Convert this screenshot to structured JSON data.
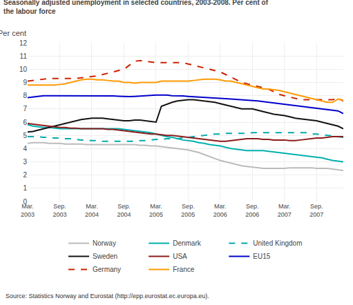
{
  "chart_data": {
    "type": "line",
    "title": "Seasonally adjusted unemployment in selected countries, 2003-2008. Per cent of\nthe labour force",
    "ylabel": "Per cent",
    "annotations": [
      "Source: Statistics Norway and Eurostat (http://epp.eurostat.ec.europa.eu)."
    ],
    "categories": [
      "Mar.\n2003",
      null,
      null,
      null,
      null,
      null,
      "Sep.\n2003",
      null,
      null,
      null,
      null,
      null,
      "Mar.\n2004",
      null,
      null,
      null,
      null,
      null,
      "Sep.\n2004",
      null,
      null,
      null,
      null,
      null,
      "Mar.\n2005",
      null,
      null,
      null,
      null,
      null,
      "Sep.\n2005",
      null,
      null,
      null,
      null,
      null,
      "Mar.\n2006",
      null,
      null,
      null,
      null,
      null,
      "Sep.\n2006",
      null,
      null,
      null,
      null,
      null,
      "Mar.\n2007",
      null,
      null,
      null,
      null,
      null,
      "Sep.\n2007",
      null,
      null,
      null,
      null,
      null
    ],
    "ylim": [
      0,
      12
    ],
    "yticks": [
      0,
      1,
      2,
      3,
      4,
      5,
      6,
      7,
      8,
      9,
      10,
      11,
      12
    ],
    "grid": true,
    "legend": "bottom",
    "series": [
      {
        "name": "Norway",
        "color": "#bbbbbb",
        "line_style": "solid",
        "values": [
          4.4,
          4.45,
          4.45,
          4.45,
          4.4,
          4.4,
          4.4,
          4.35,
          4.35,
          4.35,
          4.35,
          4.3,
          4.3,
          4.3,
          4.3,
          4.3,
          4.3,
          4.3,
          4.3,
          4.3,
          4.3,
          4.25,
          4.25,
          4.2,
          4.2,
          4.15,
          4.1,
          4.05,
          4.0,
          3.95,
          3.9,
          3.8,
          3.7,
          3.55,
          3.4,
          3.25,
          3.1,
          3.0,
          2.9,
          2.8,
          2.7,
          2.65,
          2.6,
          2.55,
          2.5,
          2.5,
          2.5,
          2.5,
          2.5,
          2.55,
          2.55,
          2.55,
          2.55,
          2.55,
          2.5,
          2.5,
          2.5,
          2.45,
          2.4,
          2.35
        ]
      },
      {
        "name": "Denmark",
        "color": "#00b0b0",
        "line_style": "solid",
        "values": [
          5.8,
          5.7,
          5.65,
          5.6,
          5.6,
          5.55,
          5.5,
          5.5,
          5.5,
          5.5,
          5.5,
          5.5,
          5.5,
          5.5,
          5.5,
          5.5,
          5.5,
          5.5,
          5.45,
          5.4,
          5.35,
          5.3,
          5.25,
          5.2,
          5.1,
          5.0,
          4.9,
          4.85,
          4.75,
          4.65,
          4.6,
          4.55,
          4.45,
          4.4,
          4.3,
          4.25,
          4.2,
          4.1,
          4.0,
          3.95,
          3.9,
          3.85,
          3.85,
          3.85,
          3.85,
          3.8,
          3.75,
          3.7,
          3.65,
          3.6,
          3.55,
          3.5,
          3.45,
          3.4,
          3.35,
          3.3,
          3.2,
          3.1,
          3.05,
          3.0
        ]
      },
      {
        "name": "United Kingdom",
        "color": "#00aaaa",
        "line_style": "dashed",
        "values": [
          4.9,
          4.9,
          4.9,
          4.85,
          4.85,
          4.8,
          4.8,
          4.75,
          4.75,
          4.7,
          4.65,
          4.65,
          4.6,
          4.6,
          4.55,
          4.55,
          4.55,
          4.55,
          4.55,
          4.55,
          4.55,
          4.6,
          4.6,
          4.65,
          4.7,
          4.7,
          4.75,
          4.75,
          4.75,
          4.8,
          4.85,
          4.9,
          4.95,
          5.0,
          5.05,
          5.1,
          5.1,
          5.15,
          5.15,
          5.15,
          5.15,
          5.15,
          5.2,
          5.2,
          5.2,
          5.2,
          5.2,
          5.2,
          5.2,
          5.2,
          5.2,
          5.2,
          5.2,
          5.1,
          5.1,
          5.05,
          5.0,
          4.95,
          4.9,
          4.85
        ]
      },
      {
        "name": "Sweden",
        "color": "#111111",
        "line_style": "solid",
        "values": [
          5.25,
          5.3,
          5.4,
          5.5,
          5.6,
          5.7,
          5.8,
          5.9,
          6.0,
          6.1,
          6.2,
          6.25,
          6.3,
          6.3,
          6.3,
          6.25,
          6.2,
          6.15,
          6.1,
          6.1,
          6.15,
          6.15,
          6.1,
          6.05,
          6.0,
          7.2,
          7.35,
          7.5,
          7.6,
          7.65,
          7.7,
          7.7,
          7.65,
          7.6,
          7.55,
          7.5,
          7.4,
          7.3,
          7.2,
          7.1,
          7.0,
          7.0,
          7.0,
          6.9,
          6.8,
          6.7,
          6.6,
          6.55,
          6.5,
          6.4,
          6.3,
          6.25,
          6.2,
          6.15,
          6.1,
          6.0,
          5.9,
          5.8,
          5.7,
          5.5
        ]
      },
      {
        "name": "USA",
        "color": "#8b1a1a",
        "line_style": "solid",
        "values": [
          5.9,
          5.85,
          5.8,
          5.75,
          5.7,
          5.65,
          5.6,
          5.6,
          5.55,
          5.55,
          5.5,
          5.5,
          5.5,
          5.5,
          5.5,
          5.45,
          5.45,
          5.4,
          5.35,
          5.3,
          5.25,
          5.2,
          5.15,
          5.1,
          5.1,
          5.05,
          5.0,
          5.0,
          4.95,
          4.9,
          4.85,
          4.8,
          4.75,
          4.7,
          4.65,
          4.6,
          4.55,
          4.55,
          4.6,
          4.65,
          4.7,
          4.75,
          4.75,
          4.75,
          4.7,
          4.7,
          4.65,
          4.65,
          4.65,
          4.6,
          4.6,
          4.65,
          4.7,
          4.75,
          4.8,
          4.8,
          4.85,
          4.9,
          4.9,
          4.9
        ]
      },
      {
        "name": "EU15",
        "color": "#0000cc",
        "line_style": "solid",
        "values": [
          7.85,
          7.9,
          7.95,
          8.0,
          8.0,
          8.0,
          8.0,
          8.0,
          8.0,
          8.0,
          8.0,
          8.0,
          8.0,
          8.0,
          8.0,
          8.0,
          7.98,
          7.96,
          7.94,
          7.93,
          7.95,
          7.98,
          8.0,
          8.02,
          8.05,
          8.05,
          8.05,
          8.0,
          8.0,
          7.98,
          7.95,
          7.93,
          7.9,
          7.88,
          7.85,
          7.82,
          7.8,
          7.78,
          7.75,
          7.72,
          7.7,
          7.68,
          7.65,
          7.6,
          7.55,
          7.5,
          7.45,
          7.4,
          7.35,
          7.3,
          7.25,
          7.2,
          7.15,
          7.1,
          7.05,
          7.0,
          6.95,
          6.9,
          6.85,
          6.65
        ]
      },
      {
        "name": "Germany",
        "color": "#cc2200",
        "line_style": "dashed",
        "values": [
          9.1,
          9.15,
          9.2,
          9.25,
          9.3,
          9.3,
          9.3,
          9.3,
          9.3,
          9.3,
          9.35,
          9.4,
          9.45,
          9.5,
          9.6,
          9.7,
          9.8,
          9.9,
          10.0,
          10.3,
          10.6,
          10.65,
          10.6,
          10.55,
          10.5,
          10.5,
          10.5,
          10.5,
          10.5,
          10.5,
          10.4,
          10.3,
          10.2,
          10.1,
          10.0,
          9.9,
          9.8,
          9.6,
          9.4,
          9.2,
          9.0,
          8.9,
          8.8,
          8.7,
          8.6,
          8.5,
          8.3,
          8.1,
          8.0,
          7.9,
          7.8,
          7.7,
          7.7,
          7.7,
          7.7,
          7.7,
          7.7,
          7.7,
          7.8,
          7.6
        ]
      },
      {
        "name": "France",
        "color": "#ff9900",
        "line_style": "solid",
        "values": [
          8.8,
          8.8,
          8.8,
          8.8,
          8.8,
          8.8,
          8.85,
          8.9,
          9.0,
          9.1,
          9.2,
          9.25,
          9.25,
          9.2,
          9.2,
          9.15,
          9.1,
          9.1,
          9.0,
          9.0,
          8.95,
          9.0,
          9.0,
          9.0,
          9.0,
          9.1,
          9.1,
          9.1,
          9.1,
          9.1,
          9.1,
          9.15,
          9.2,
          9.25,
          9.25,
          9.25,
          9.2,
          9.1,
          9.1,
          9.0,
          8.9,
          8.8,
          8.7,
          8.6,
          8.5,
          8.5,
          8.45,
          8.4,
          8.3,
          8.2,
          8.1,
          8.0,
          7.9,
          7.8,
          7.7,
          7.6,
          7.5,
          7.5,
          7.75,
          7.65
        ]
      }
    ]
  }
}
